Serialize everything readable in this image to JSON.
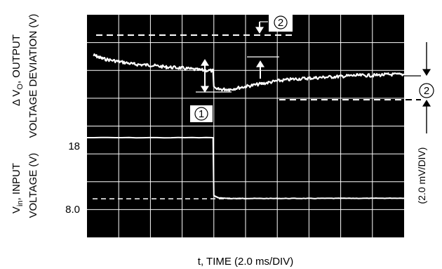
{
  "chart_data": {
    "type": "line",
    "x_axis": {
      "label": "t, TIME (2.0 ms/DIV)",
      "divisions": 10,
      "range_ms": [
        0,
        20
      ]
    },
    "y_axis_upper": {
      "label_line1": "Δ V",
      "label_sub": "O",
      "label_line1_rest": ", OUTPUT",
      "label_line2": "VOLTAGE DEVIATION (V)",
      "scale_label": "(2.0 mV/DIV)"
    },
    "y_axis_lower": {
      "label_line1": "V",
      "label_sub": "in",
      "label_line1_rest": ", INPUT",
      "label_line2": "VOLTAGE (V)",
      "ticks": [
        {
          "label": "18",
          "value": 18
        },
        {
          "label": "8.0",
          "value": 8.0
        }
      ]
    },
    "grid": true,
    "grid_divisions": {
      "x": 10,
      "y": 8
    },
    "series": [
      {
        "trace": "output_deviation",
        "unit": "mV",
        "color": "#ffffff",
        "x": [
          0.4,
          1.0,
          2.0,
          3.0,
          4.0,
          5.0,
          6.0,
          7.0,
          7.95,
          8.0,
          8.2,
          9.0,
          10.0,
          11.0,
          12.0,
          13.0,
          14.0,
          15.0,
          16.0,
          17.0,
          18.0,
          19.0,
          20.0
        ],
        "y": [
          7.7,
          7.3,
          7.0,
          6.7,
          6.6,
          6.4,
          6.3,
          6.1,
          6.0,
          4.3,
          4.0,
          4.0,
          4.3,
          4.6,
          4.9,
          5.1,
          5.2,
          5.3,
          5.4,
          5.5,
          5.5,
          5.6,
          5.6
        ]
      },
      {
        "trace": "input_voltage",
        "unit": "V",
        "color": "#ffffff",
        "x": [
          0,
          7.95,
          8.0,
          8.3,
          9.0,
          10.0,
          12.0,
          14.0,
          16.0,
          18.0,
          20.0
        ],
        "y": [
          18,
          18,
          8.5,
          8.15,
          8.05,
          8.05,
          8.05,
          8.06,
          8.07,
          8.08,
          8.1
        ]
      }
    ],
    "annotations": [
      {
        "id": "marker-1",
        "label": "1"
      },
      {
        "id": "marker-2-top",
        "label": "2"
      },
      {
        "id": "marker-2-right",
        "label": "2"
      }
    ]
  }
}
